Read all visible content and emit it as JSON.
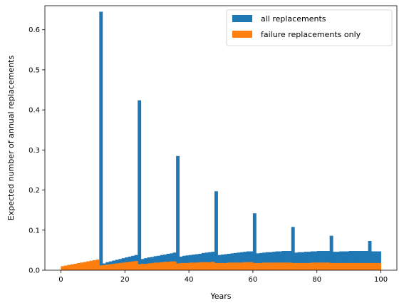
{
  "chart_data": {
    "type": "bar",
    "title": "",
    "xlabel": "Years",
    "ylabel": "Expected number of annual replacements",
    "xlim": [
      -5,
      105
    ],
    "ylim": [
      0,
      0.66
    ],
    "xticks": [
      0,
      20,
      40,
      60,
      80,
      100
    ],
    "yticks": [
      0.0,
      0.1,
      0.2,
      0.3,
      0.4,
      0.5,
      0.6
    ],
    "xtick_labels": [
      "0",
      "20",
      "40",
      "60",
      "80",
      "100"
    ],
    "ytick_labels": [
      "0.0",
      "0.1",
      "0.2",
      "0.3",
      "0.4",
      "0.5",
      "0.6"
    ],
    "grid": false,
    "legend_position": "upper-right",
    "bar_width": 1,
    "x": [
      0,
      1,
      2,
      3,
      4,
      5,
      6,
      7,
      8,
      9,
      10,
      11,
      12,
      13,
      14,
      15,
      16,
      17,
      18,
      19,
      20,
      21,
      22,
      23,
      24,
      25,
      26,
      27,
      28,
      29,
      30,
      31,
      32,
      33,
      34,
      35,
      36,
      37,
      38,
      39,
      40,
      41,
      42,
      43,
      44,
      45,
      46,
      47,
      48,
      49,
      50,
      51,
      52,
      53,
      54,
      55,
      56,
      57,
      58,
      59,
      60,
      61,
      62,
      63,
      64,
      65,
      66,
      67,
      68,
      69,
      70,
      71,
      72,
      73,
      74,
      75,
      76,
      77,
      78,
      79,
      80,
      81,
      82,
      83,
      84,
      85,
      86,
      87,
      88,
      89,
      90,
      91,
      92,
      93,
      94,
      95,
      96,
      97,
      98,
      99
    ],
    "series": [
      {
        "name": "all replacements",
        "color": "#1f77b4",
        "values": [
          0.01,
          0.0115,
          0.013,
          0.0145,
          0.016,
          0.0175,
          0.019,
          0.0205,
          0.022,
          0.0235,
          0.025,
          0.0265,
          0.645,
          0.017,
          0.02,
          0.022,
          0.024,
          0.026,
          0.028,
          0.03,
          0.032,
          0.034,
          0.036,
          0.038,
          0.424,
          0.028,
          0.03,
          0.032,
          0.033,
          0.035,
          0.036,
          0.038,
          0.039,
          0.041,
          0.042,
          0.044,
          0.285,
          0.034,
          0.036,
          0.037,
          0.038,
          0.039,
          0.04,
          0.041,
          0.043,
          0.044,
          0.045,
          0.046,
          0.197,
          0.038,
          0.039,
          0.04,
          0.041,
          0.042,
          0.043,
          0.044,
          0.045,
          0.046,
          0.047,
          0.047,
          0.142,
          0.042,
          0.043,
          0.044,
          0.045,
          0.045,
          0.046,
          0.047,
          0.047,
          0.048,
          0.048,
          0.048,
          0.108,
          0.044,
          0.045,
          0.045,
          0.046,
          0.046,
          0.047,
          0.047,
          0.048,
          0.048,
          0.048,
          0.048,
          0.086,
          0.046,
          0.046,
          0.047,
          0.047,
          0.047,
          0.048,
          0.048,
          0.048,
          0.048,
          0.048,
          0.048,
          0.073,
          0.047,
          0.047,
          0.047
        ]
      },
      {
        "name": "failure replacements only",
        "color": "#ff7f0e",
        "values": [
          0.01,
          0.0115,
          0.013,
          0.0145,
          0.016,
          0.0175,
          0.019,
          0.0205,
          0.022,
          0.0235,
          0.025,
          0.0265,
          0.012,
          0.013,
          0.014,
          0.015,
          0.016,
          0.017,
          0.018,
          0.019,
          0.02,
          0.021,
          0.022,
          0.023,
          0.015,
          0.016,
          0.016,
          0.017,
          0.018,
          0.019,
          0.019,
          0.02,
          0.021,
          0.021,
          0.022,
          0.022,
          0.017,
          0.018,
          0.018,
          0.018,
          0.019,
          0.019,
          0.019,
          0.02,
          0.02,
          0.02,
          0.02,
          0.021,
          0.018,
          0.018,
          0.018,
          0.018,
          0.019,
          0.019,
          0.019,
          0.019,
          0.019,
          0.02,
          0.02,
          0.02,
          0.018,
          0.018,
          0.018,
          0.019,
          0.019,
          0.019,
          0.019,
          0.019,
          0.019,
          0.019,
          0.019,
          0.019,
          0.018,
          0.018,
          0.018,
          0.018,
          0.018,
          0.018,
          0.019,
          0.019,
          0.019,
          0.019,
          0.019,
          0.019,
          0.018,
          0.018,
          0.018,
          0.018,
          0.018,
          0.018,
          0.018,
          0.018,
          0.018,
          0.018,
          0.018,
          0.018,
          0.018,
          0.018,
          0.018,
          0.018
        ]
      }
    ]
  }
}
